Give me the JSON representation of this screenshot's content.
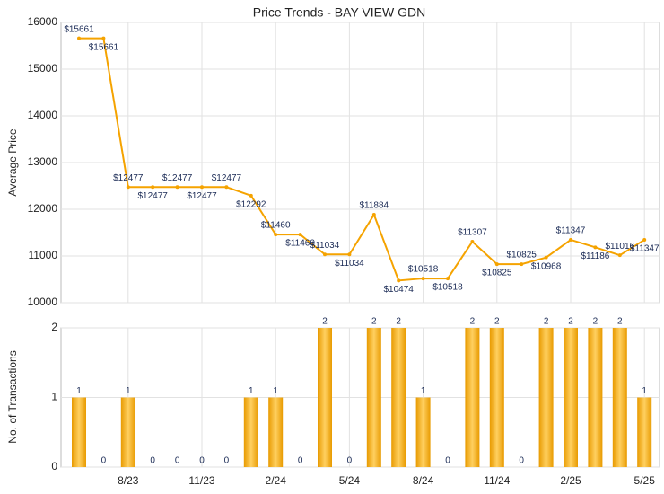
{
  "chart_data": [
    {
      "type": "line",
      "title": "Price Trends - BAY VIEW GDN",
      "y_label": "Average Price",
      "color": "#f5a300",
      "values": [
        15661,
        15661,
        12477,
        12477,
        12477,
        12477,
        12477,
        12292,
        11460,
        11460,
        11034,
        11034,
        11884,
        10474,
        10518,
        10518,
        11307,
        10825,
        10825,
        10968,
        11347,
        11186,
        11016,
        11347
      ],
      "value_labels": [
        "$15661",
        "$15661",
        "$12477",
        "$12477",
        "$12477",
        "$12477",
        "$12477",
        "$12292",
        "$11460",
        "$11460",
        "$11034",
        "$11034",
        "$11884",
        "$10474",
        "$10518",
        "$10518",
        "$11307",
        "$10825",
        "$10825",
        "$10968",
        "$11347",
        "$11186",
        "$11016",
        "$11347"
      ],
      "ylim": [
        10000,
        16000
      ],
      "yticks": [
        10000,
        11000,
        12000,
        13000,
        14000,
        15000,
        16000
      ],
      "grid": true
    },
    {
      "type": "bar",
      "y_label": "No. of Transactions",
      "color": "#f5a300",
      "categories": [
        null,
        null,
        "8/23",
        null,
        null,
        "11/23",
        null,
        null,
        "2/24",
        null,
        null,
        "5/24",
        null,
        null,
        "8/24",
        null,
        null,
        "11/24",
        null,
        null,
        "2/25",
        null,
        null,
        "5/25"
      ],
      "values": [
        1,
        0,
        1,
        0,
        0,
        0,
        0,
        1,
        1,
        0,
        2,
        0,
        2,
        2,
        1,
        0,
        2,
        2,
        0,
        2,
        2,
        2,
        2,
        1
      ],
      "ylim": [
        0,
        2
      ],
      "yticks": [
        0,
        1,
        2
      ],
      "grid": true
    }
  ]
}
